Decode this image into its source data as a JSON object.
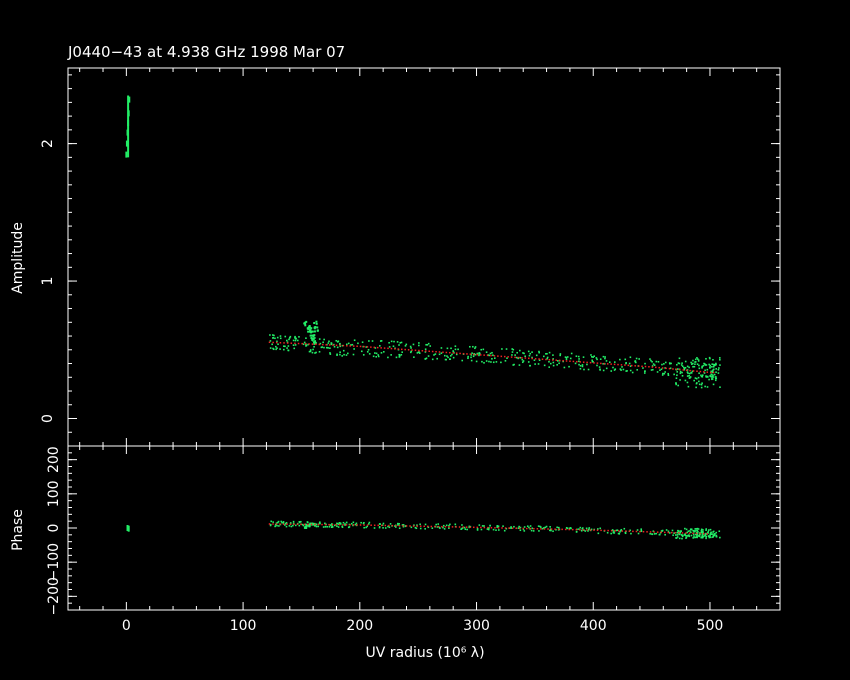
{
  "chart_data": [
    {
      "type": "scatter",
      "title": "J0440−43 at 4.938 GHz 1998 Mar 07",
      "xlabel": "UV radius  (10⁶ λ)",
      "ylabel": "Amplitude",
      "xlim": [
        -50,
        560
      ],
      "ylim": [
        -0.2,
        2.55
      ],
      "x_ticks": [
        "0",
        "100",
        "200",
        "300",
        "400",
        "500"
      ],
      "y_ticks": [
        "0",
        "1",
        "2"
      ],
      "colors": {
        "observed": "#22ee66",
        "model": "#ee2222"
      },
      "series": [
        {
          "x": [
            0,
            0.5,
            1,
            1.5,
            2,
            2.5
          ],
          "y": [
            1.92,
            2.0,
            2.08,
            2.15,
            2.22,
            2.32
          ]
        },
        {
          "x": [
            122,
            135,
            148,
            165,
            180,
            200,
            220,
            240,
            260,
            280,
            300,
            320,
            340,
            360,
            380,
            400,
            420,
            440,
            460,
            480,
            500,
            505
          ],
          "y": [
            0.57,
            0.55,
            0.54,
            0.53,
            0.52,
            0.52,
            0.51,
            0.51,
            0.49,
            0.48,
            0.47,
            0.46,
            0.45,
            0.44,
            0.42,
            0.41,
            0.4,
            0.39,
            0.38,
            0.36,
            0.34,
            0.34
          ]
        },
        {
          "x": [
            153,
            155,
            156,
            157,
            158,
            159,
            160,
            161,
            162
          ],
          "y": [
            0.7,
            0.68,
            0.66,
            0.64,
            0.62,
            0.6,
            0.58,
            0.69,
            0.66
          ]
        },
        {
          "x": [
            122,
            150,
            200,
            250,
            300,
            350,
            400,
            450,
            500,
            505
          ],
          "y": [
            0.56,
            0.55,
            0.53,
            0.5,
            0.47,
            0.44,
            0.41,
            0.38,
            0.34,
            0.34
          ]
        }
      ]
    },
    {
      "type": "scatter",
      "xlabel": "UV radius  (10⁶ λ)",
      "ylabel": "Phase",
      "xlim": [
        -50,
        560
      ],
      "ylim": [
        -240,
        240
      ],
      "x_ticks": [
        "0",
        "100",
        "200",
        "300",
        "400",
        "500"
      ],
      "y_ticks": [
        "−200",
        "−100",
        "0",
        "100",
        "200"
      ],
      "colors": {
        "observed": "#22ee66",
        "model": "#ee2222"
      },
      "series": [
        {
          "x": [
            1,
            2
          ],
          "y": [
            0,
            -2
          ]
        },
        {
          "x": [
            122,
            140,
            160,
            180,
            200,
            230,
            260,
            290,
            320,
            350,
            380,
            410,
            440,
            470,
            490,
            505
          ],
          "y": [
            15,
            14,
            13,
            12,
            11,
            9,
            7,
            5,
            2,
            0,
            -3,
            -6,
            -9,
            -12,
            -15,
            -17
          ]
        },
        {
          "x": [
            153,
            155,
            157,
            159,
            161
          ],
          "y": [
            5,
            10,
            14,
            16,
            12
          ]
        },
        {
          "x": [
            122,
            200,
            300,
            400,
            500
          ],
          "y": [
            14,
            11,
            4,
            -4,
            -15
          ]
        }
      ]
    }
  ]
}
